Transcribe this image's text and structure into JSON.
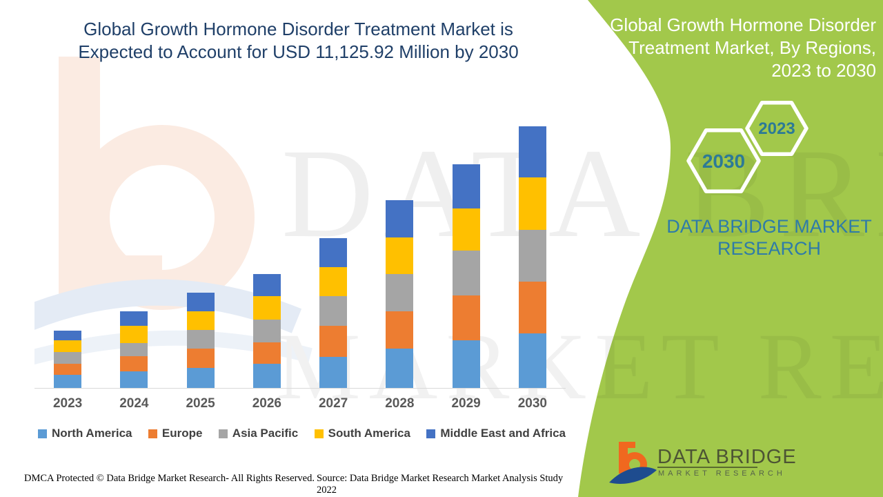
{
  "header": {
    "title_lines": [
      "Global Growth Hormone Disorder Treatment Market is",
      "Expected to Account for USD 11,125.92 Million by 2030"
    ],
    "title_color": "#1f3f68"
  },
  "watermarks": {
    "row1": "DATA BRIDGE",
    "row2": "MARKET RESEARCH"
  },
  "chart_data": {
    "type": "bar",
    "stacked": true,
    "unit": "USD Million",
    "categories": [
      "2023",
      "2024",
      "2025",
      "2026",
      "2027",
      "2028",
      "2029",
      "2030"
    ],
    "series": [
      {
        "name": "North America",
        "color": "#5B9BD5",
        "values": [
          558,
          705,
          851,
          1027,
          1321,
          1673,
          2026,
          2318.92
        ]
      },
      {
        "name": "Europe",
        "color": "#ED7D31",
        "values": [
          470,
          646,
          822,
          910,
          1321,
          1585,
          1908,
          2202
        ]
      },
      {
        "name": "Asia Pacific",
        "color": "#A5A5A5",
        "values": [
          499,
          558,
          793,
          969,
          1262,
          1585,
          1908,
          2202
        ]
      },
      {
        "name": "South America",
        "color": "#FFC000",
        "values": [
          499,
          734,
          793,
          998,
          1233,
          1556,
          1791,
          2231
        ]
      },
      {
        "name": "Middle East and Africa",
        "color": "#4472C4",
        "values": [
          411,
          616,
          793,
          939,
          1233,
          1585,
          1879,
          2172
        ]
      }
    ],
    "totals_note": "2030 total labeled in title as USD 11,125.92 Million; other segment values estimated from bar heights",
    "ylim": [
      0,
      11500
    ],
    "grid": false,
    "legend_position": "bottom",
    "axis_label_color": "#595959",
    "legend_text_color": "#404040"
  },
  "side_panel": {
    "background_color": "#a2c84b",
    "title_lines": [
      "Global Growth Hormone Disorder",
      "Treatment Market, By Regions,",
      "2023 to 2030"
    ],
    "hexagons": {
      "start_year": "2023",
      "end_year": "2030",
      "year_text_color": "#2c7a96"
    },
    "brand_lines": [
      "DATA BRIDGE MARKET",
      "RESEARCH"
    ],
    "brand_color": "#2e7ba8",
    "logo": {
      "name": "DATA BRIDGE",
      "tagline": "MARKET RESEARCH"
    }
  },
  "footer": {
    "left": "DMCA Protected © Data Bridge Market Research- All Rights Reserved.",
    "right": "Source: Data Bridge Market Research Market Analysis Study 2022"
  }
}
